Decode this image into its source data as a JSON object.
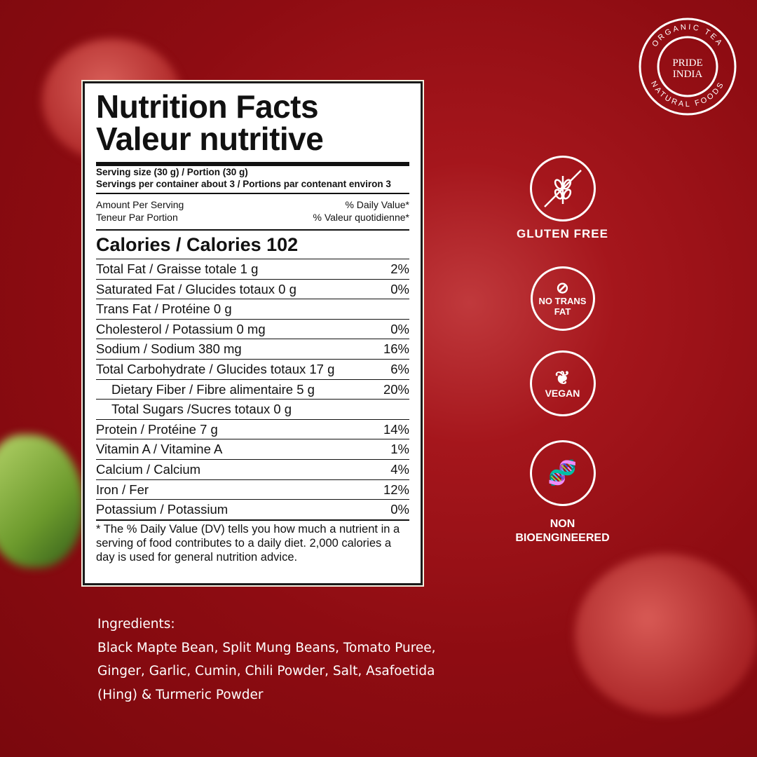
{
  "brand": {
    "logo_top": "ORGANIC TEA",
    "logo_bottom": "NATURAL FOODS",
    "logo_center": "PRIDE INDIA"
  },
  "label": {
    "title_en": "Nutrition Facts",
    "title_fr": "Valeur nutritive",
    "serving": "Serving size  (30 g)  / Portion (30 g)",
    "servings_per": "Servings per container about 3 / Portions par contenant environ 3",
    "amount_en": "Amount Per Serving",
    "amount_fr": "Teneur Par Portion",
    "dv_en": "% Daily Value*",
    "dv_fr": "% Valeur quotidienne*",
    "calories": "Calories / Calories 102",
    "rows": [
      {
        "name": "Total Fat / Graisse totale 1 g",
        "dv": "2%"
      },
      {
        "name": "Saturated Fat / Glucides totaux 0 g",
        "dv": "0%"
      },
      {
        "name": "Trans Fat / Protéine 0 g",
        "dv": ""
      },
      {
        "name": "Cholesterol / Potassium 0 mg",
        "dv": "0%"
      },
      {
        "name": "Sodium / Sodium 380 mg",
        "dv": "16%"
      },
      {
        "name": "Total Carbohydrate / Glucides totaux 17 g",
        "dv": "6%"
      },
      {
        "name": "Dietary Fiber / Fibre alimentaire 5 g",
        "dv": "20%"
      },
      {
        "name": "Total Sugars /Sucres totaux 0 g",
        "dv": ""
      },
      {
        "name": "Protein / Protéine 7 g",
        "dv": "14%"
      },
      {
        "name": "Vitamin A /  Vitamine A",
        "dv": "1%"
      },
      {
        "name": "Calcium / Calcium",
        "dv": "4%"
      },
      {
        "name": "Iron / Fer",
        "dv": "12%"
      },
      {
        "name": "Potassium / Potassium",
        "dv": "0%"
      }
    ],
    "footnote": "* The % Daily Value (DV) tells you how much a nutrient in a serving of food contributes to a daily diet. 2,000 calories a day is used for general nutrition advice."
  },
  "badges": [
    {
      "icon": "no-wheat-icon",
      "label": "GLUTEN FREE"
    },
    {
      "icon": "no-trans-fat-icon",
      "label": "NO TRANS FAT"
    },
    {
      "icon": "leaf-icon",
      "label": "VEGAN"
    },
    {
      "icon": "dna-icon",
      "label": "NON BIOENGINEERED"
    }
  ],
  "ingredients": {
    "heading": "Ingredients:",
    "text": "Black Mapte Bean, Split Mung Beans, Tomato Puree, Ginger, Garlic, Cumin, Chili Powder, Salt, Asafoetida (Hing) & Turmeric Powder"
  }
}
